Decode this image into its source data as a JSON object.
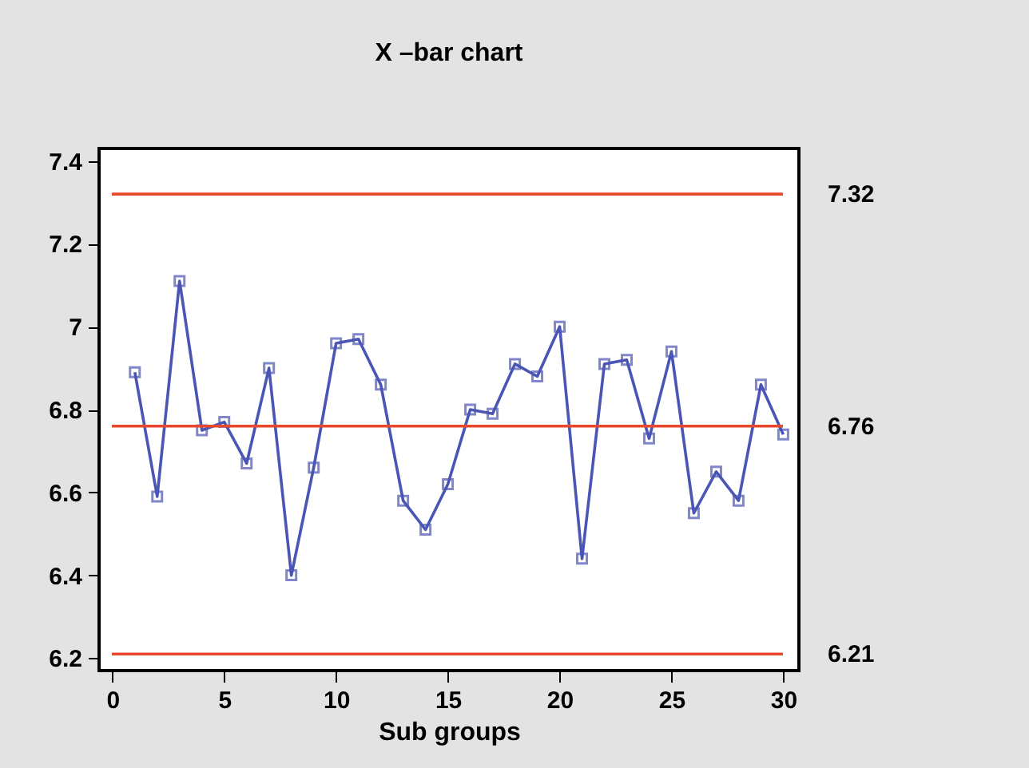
{
  "chart_data": {
    "type": "line",
    "title": "X –bar chart",
    "xlabel": "Sub groups",
    "x": [
      1,
      2,
      3,
      4,
      5,
      6,
      7,
      8,
      9,
      10,
      11,
      12,
      13,
      14,
      15,
      16,
      17,
      18,
      19,
      20,
      21,
      22,
      23,
      24,
      25,
      26,
      27,
      28,
      29,
      30
    ],
    "series": [
      {
        "color": "#4a55b5",
        "values": [
          6.89,
          6.59,
          7.11,
          6.75,
          6.77,
          6.67,
          6.9,
          6.4,
          6.66,
          6.96,
          6.97,
          6.86,
          6.58,
          6.51,
          6.62,
          6.8,
          6.79,
          6.91,
          6.88,
          7.0,
          6.44,
          6.91,
          6.92,
          6.73,
          6.94,
          6.55,
          6.65,
          6.58,
          6.86,
          6.74
        ]
      }
    ],
    "marker": "square",
    "line_style": "solid",
    "grid": false,
    "xlim": [
      -0.6,
      30.7
    ],
    "xticks": [
      0,
      5,
      10,
      15,
      20,
      25,
      30
    ],
    "ylim": [
      6.17,
      7.43
    ],
    "yticks": [
      6.2,
      6.4,
      6.6,
      6.8,
      7,
      7.2,
      7.4
    ],
    "ref_lines": [
      {
        "axis": "y",
        "value": 7.32,
        "label": "7.32",
        "color": "#e8482c"
      },
      {
        "axis": "y",
        "value": 6.76,
        "label": "6.76",
        "color": "#e8482c"
      },
      {
        "axis": "y",
        "value": 6.21,
        "label": "6.21",
        "color": "#e8482c"
      }
    ]
  }
}
